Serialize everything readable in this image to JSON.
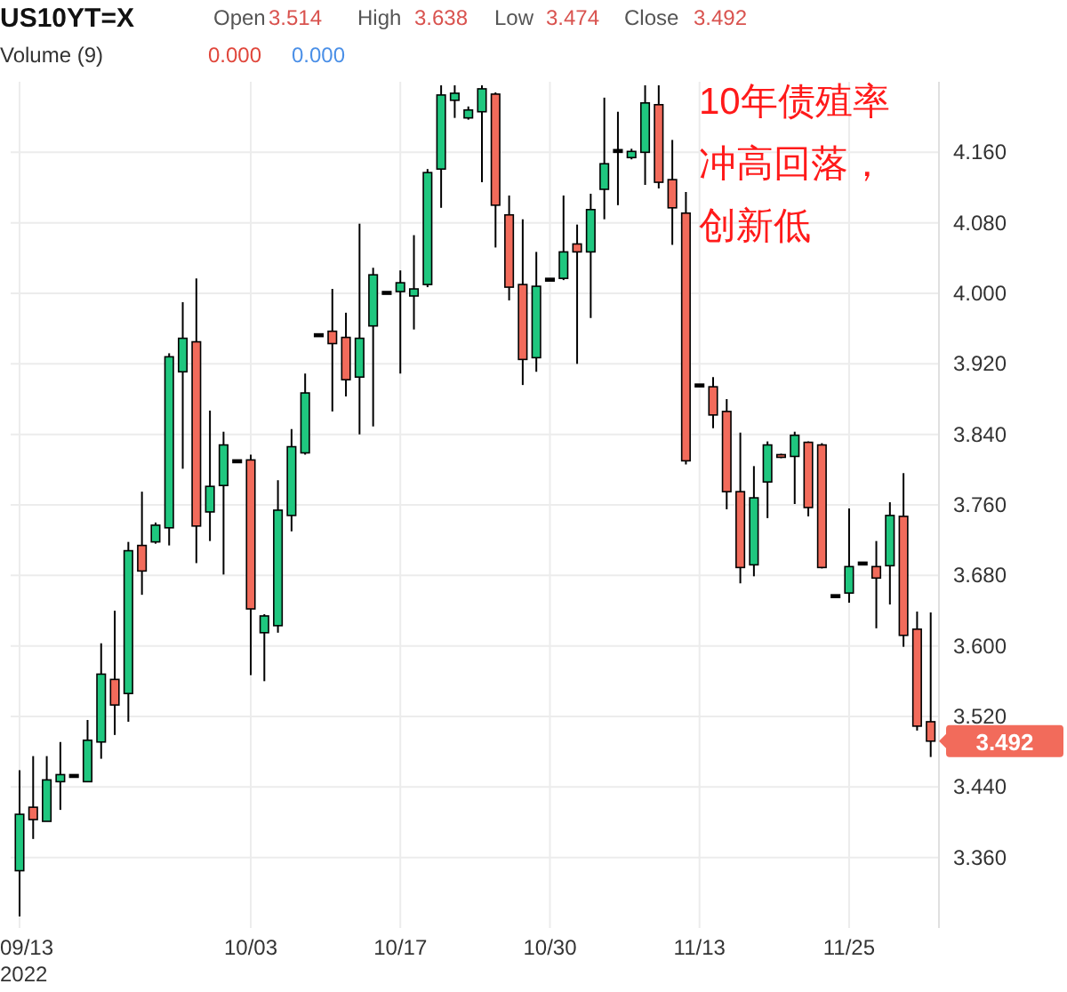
{
  "chart_data": {
    "type": "candlestick",
    "title": "US10YT=X",
    "categories": [
      "09/13",
      null,
      null,
      null,
      null,
      null,
      null,
      null,
      null,
      null,
      null,
      null,
      null,
      null,
      null,
      null,
      null,
      "10/03",
      null,
      null,
      null,
      null,
      null,
      null,
      null,
      null,
      null,
      null,
      "10/17",
      null,
      null,
      null,
      null,
      null,
      null,
      null,
      null,
      null,
      null,
      "10/30",
      null,
      null,
      null,
      null,
      null,
      null,
      null,
      null,
      null,
      null,
      "11/13",
      null,
      null,
      null,
      null,
      null,
      null,
      null,
      null,
      null,
      null,
      "11/25",
      null,
      null,
      null,
      null,
      null,
      null
    ],
    "ohlc": [
      [
        3.345,
        3.459,
        3.293,
        3.409
      ],
      [
        3.417,
        3.475,
        3.381,
        3.403
      ],
      [
        3.401,
        3.475,
        3.401,
        3.448
      ],
      [
        3.446,
        3.491,
        3.414,
        3.454
      ],
      [
        3.454,
        3.454,
        3.454,
        3.454
      ],
      [
        3.446,
        3.516,
        3.446,
        3.493
      ],
      [
        3.491,
        3.603,
        3.472,
        3.568
      ],
      [
        3.562,
        3.64,
        3.499,
        3.533
      ],
      [
        3.546,
        3.718,
        3.514,
        3.708
      ],
      [
        3.714,
        3.775,
        3.658,
        3.685
      ],
      [
        3.718,
        3.74,
        3.716,
        3.737
      ],
      [
        3.734,
        3.932,
        3.714,
        3.928
      ],
      [
        3.911,
        3.99,
        3.801,
        3.949
      ],
      [
        3.945,
        4.017,
        3.694,
        3.736
      ],
      [
        3.752,
        3.867,
        3.719,
        3.781
      ],
      [
        3.782,
        3.843,
        3.681,
        3.828
      ],
      [
        3.811,
        3.811,
        3.811,
        3.811
      ],
      [
        3.811,
        3.817,
        3.567,
        3.642
      ],
      [
        3.615,
        3.636,
        3.56,
        3.634
      ],
      [
        3.623,
        3.788,
        3.615,
        3.754
      ],
      [
        3.748,
        3.846,
        3.73,
        3.826
      ],
      [
        3.819,
        3.909,
        3.817,
        3.887
      ],
      [
        3.954,
        3.954,
        3.954,
        3.954
      ],
      [
        3.957,
        4.005,
        3.866,
        3.943
      ],
      [
        3.95,
        3.978,
        3.883,
        3.902
      ],
      [
        3.905,
        4.079,
        3.84,
        3.949
      ],
      [
        3.963,
        4.029,
        3.849,
        4.021
      ],
      [
        4.002,
        4.002,
        4.002,
        4.002
      ],
      [
        4.002,
        4.026,
        3.909,
        4.012
      ],
      [
        3.997,
        4.066,
        3.959,
        4.005
      ],
      [
        4.01,
        4.141,
        4.007,
        4.137
      ],
      [
        4.141,
        4.236,
        4.097,
        4.225
      ],
      [
        4.219,
        4.236,
        4.199,
        4.227
      ],
      [
        4.199,
        4.212,
        4.197,
        4.208
      ],
      [
        4.206,
        4.236,
        4.126,
        4.232
      ],
      [
        4.226,
        4.228,
        4.052,
        4.1
      ],
      [
        4.089,
        4.111,
        3.992,
        4.007
      ],
      [
        4.01,
        4.084,
        3.896,
        3.925
      ],
      [
        3.927,
        4.047,
        3.911,
        4.008
      ],
      [
        4.017,
        4.017,
        4.017,
        4.017
      ],
      [
        4.017,
        4.111,
        4.015,
        4.047
      ],
      [
        4.056,
        4.078,
        3.92,
        4.047
      ],
      [
        4.047,
        4.113,
        3.972,
        4.095
      ],
      [
        4.118,
        4.222,
        4.084,
        4.147
      ],
      [
        4.163,
        4.206,
        4.1,
        4.163
      ],
      [
        4.154,
        4.164,
        4.152,
        4.161
      ],
      [
        4.16,
        4.236,
        4.123,
        4.216
      ],
      [
        4.214,
        4.236,
        4.119,
        4.126
      ],
      [
        4.129,
        4.174,
        4.055,
        4.097
      ],
      [
        4.091,
        4.115,
        3.806,
        3.81
      ],
      [
        3.897,
        3.897,
        3.897,
        3.897
      ],
      [
        3.894,
        3.905,
        3.847,
        3.862
      ],
      [
        3.866,
        3.88,
        3.755,
        3.775
      ],
      [
        3.775,
        3.842,
        3.671,
        3.689
      ],
      [
        3.692,
        3.804,
        3.679,
        3.768
      ],
      [
        3.786,
        3.832,
        3.745,
        3.828
      ],
      [
        3.817,
        3.818,
        3.813,
        3.814
      ],
      [
        3.815,
        3.843,
        3.761,
        3.839
      ],
      [
        3.831,
        3.832,
        3.747,
        3.757
      ],
      [
        3.828,
        3.83,
        3.688,
        3.689
      ],
      [
        3.658,
        3.658,
        3.658,
        3.658
      ],
      [
        3.66,
        3.756,
        3.649,
        3.69
      ],
      [
        3.695,
        3.695,
        3.695,
        3.695
      ],
      [
        3.69,
        3.719,
        3.62,
        3.677
      ],
      [
        3.691,
        3.763,
        3.647,
        3.748
      ],
      [
        3.747,
        3.796,
        3.599,
        3.612
      ],
      [
        3.619,
        3.639,
        3.504,
        3.509
      ],
      [
        3.514,
        3.638,
        3.474,
        3.492
      ]
    ],
    "colors": [
      "#1fc77f",
      "#f26b5b",
      "#1fc77f",
      "#1fc77f",
      "#000000",
      "#1fc77f",
      "#1fc77f",
      "#f26b5b",
      "#1fc77f",
      "#f26b5b",
      "#1fc77f",
      "#1fc77f",
      "#1fc77f",
      "#f26b5b",
      "#1fc77f",
      "#1fc77f",
      "#000000",
      "#f26b5b",
      "#1fc77f",
      "#1fc77f",
      "#1fc77f",
      "#1fc77f",
      "#000000",
      "#f26b5b",
      "#f26b5b",
      "#1fc77f",
      "#1fc77f",
      "#000000",
      "#1fc77f",
      "#1fc77f",
      "#1fc77f",
      "#1fc77f",
      "#1fc77f",
      "#1fc77f",
      "#1fc77f",
      "#f26b5b",
      "#f26b5b",
      "#f26b5b",
      "#1fc77f",
      "#000000",
      "#1fc77f",
      "#f26b5b",
      "#1fc77f",
      "#1fc77f",
      "#000000",
      "#1fc77f",
      "#1fc77f",
      "#f26b5b",
      "#f26b5b",
      "#f26b5b",
      "#000000",
      "#f26b5b",
      "#f26b5b",
      "#f26b5b",
      "#1fc77f",
      "#1fc77f",
      "#f26b5b",
      "#1fc77f",
      "#f26b5b",
      "#f26b5b",
      "#000000",
      "#1fc77f",
      "#000000",
      "#f26b5b",
      "#1fc77f",
      "#f26b5b",
      "#f26b5b",
      "#f26b5b"
    ],
    "ylim": [
      3.28,
      4.24
    ],
    "yticks": [
      {
        "value": 3.36,
        "label": "3.360"
      },
      {
        "value": 3.44,
        "label": "3.440"
      },
      {
        "value": 3.52,
        "label": "3.520"
      },
      {
        "value": 3.6,
        "label": "3.600"
      },
      {
        "value": 3.68,
        "label": "3.680"
      },
      {
        "value": 3.76,
        "label": "3.760"
      },
      {
        "value": 3.84,
        "label": "3.840"
      },
      {
        "value": 3.92,
        "label": "3.920"
      },
      {
        "value": 4.0,
        "label": "4.000"
      },
      {
        "value": 4.08,
        "label": "4.080"
      },
      {
        "value": 4.16,
        "label": "4.160"
      }
    ],
    "grid": true,
    "annotations": [
      "Open",
      "3.514",
      "High",
      "3.638",
      "Low",
      "3.474",
      "Close",
      "3.492",
      "Volume (9)",
      "0.000",
      "0.000",
      "10年债殖率",
      "冲高回落，",
      "创新低",
      "2022",
      "3.492"
    ]
  }
}
